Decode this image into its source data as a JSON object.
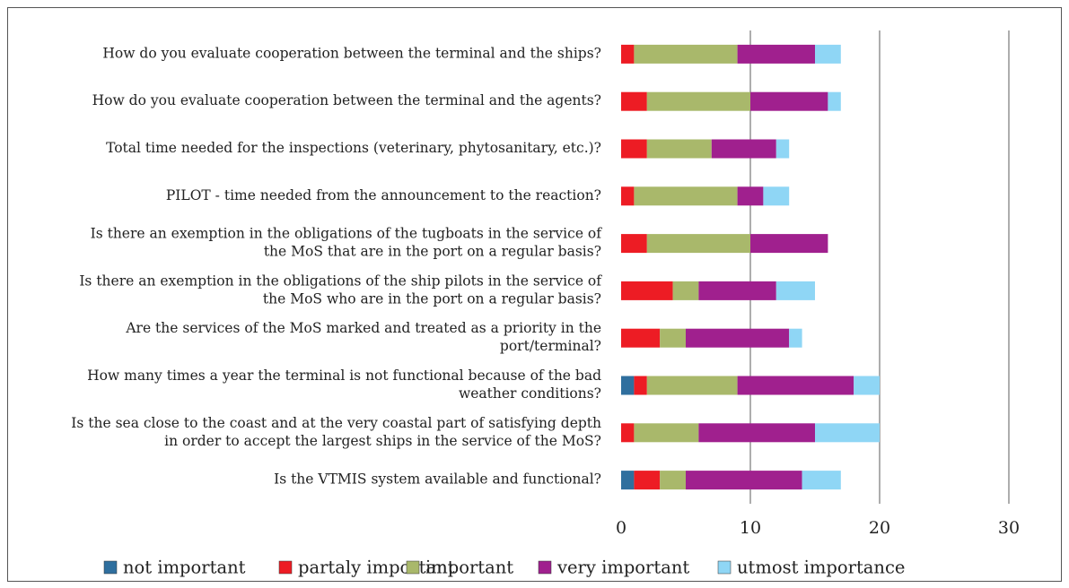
{
  "chart_data": {
    "type": "stacked-barh",
    "categories": [
      "How do you evaluate cooperation between the terminal and the ships?",
      "How do you evaluate cooperation between the terminal and the agents?",
      "Total time needed for the inspections (veterinary, phytosanitary, etc.)?",
      "PILOT - time needed from the announcement to the reaction?",
      "Is there an exemption in the obligations of the tugboats in the service of\nthe MoS that are in the port on a regular basis?",
      "Is there an exemption in the obligations of the ship pilots in the service of\nthe MoS who are in the port on a regular basis?",
      "Are the services of the MoS marked and treated as a priority in the\nport/terminal?",
      "How many times a year the terminal is not functional because of the bad\nweather conditions?",
      "Is the sea close to the coast and at the very coastal part of satisfying depth\nin order to accept the largest ships in the service of the MoS?",
      "Is the VTMIS system available and functional?"
    ],
    "series": [
      {
        "name": "not important",
        "color": "#2f6f9e",
        "values": [
          0,
          0,
          0,
          0,
          0,
          0,
          0,
          1,
          0,
          1
        ]
      },
      {
        "name": "partaly important",
        "color": "#ed1c24",
        "values": [
          1,
          2,
          2,
          1,
          2,
          4,
          3,
          1,
          1,
          2
        ]
      },
      {
        "name": "important",
        "color": "#a9b86b",
        "values": [
          8,
          8,
          5,
          8,
          8,
          2,
          2,
          7,
          5,
          2
        ]
      },
      {
        "name": "very important",
        "color": "#a0208e",
        "values": [
          6,
          6,
          5,
          2,
          6,
          6,
          8,
          9,
          9,
          9
        ]
      },
      {
        "name": "utmost importance",
        "color": "#8fd6f5",
        "values": [
          2,
          1,
          1,
          2,
          0,
          3,
          1,
          2,
          5,
          3
        ]
      }
    ],
    "xlim": [
      0,
      30
    ],
    "xticks": [
      0,
      10,
      20,
      30
    ],
    "grid": true,
    "legend": "bottom"
  }
}
